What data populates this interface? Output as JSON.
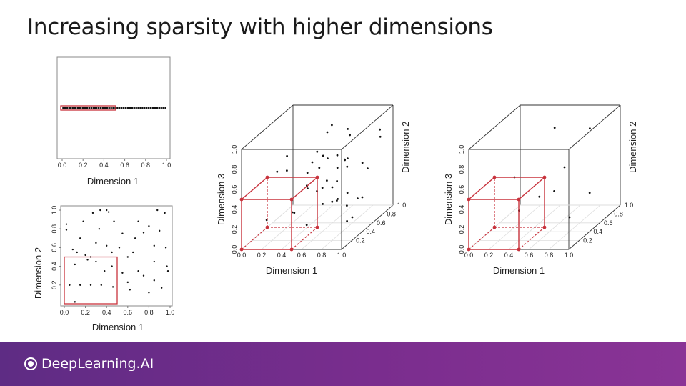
{
  "title": "Increasing sparsity with higher dimensions",
  "brand": {
    "name": "DeepLearning.AI",
    "icon": "deeplearning-logo-icon"
  },
  "colors": {
    "points": "#111111",
    "highlight": "#c8323c",
    "axis": "#555555",
    "grid": "#dddddd",
    "footer": "#6e2c8a"
  },
  "chart_data": [
    {
      "id": "one-d",
      "type": "scatter",
      "xlabel": "Dimension 1",
      "xlim": [
        0,
        1
      ],
      "xticks": [
        "0.0",
        "0.2",
        "0.4",
        "0.6",
        "0.8",
        "1.0"
      ],
      "highlight": {
        "x": [
          0,
          0.5
        ]
      },
      "x": [
        0.01,
        0.02,
        0.035,
        0.05,
        0.07,
        0.08,
        0.1,
        0.115,
        0.13,
        0.15,
        0.165,
        0.18,
        0.2,
        0.22,
        0.24,
        0.26,
        0.28,
        0.3,
        0.315,
        0.33,
        0.35,
        0.37,
        0.39,
        0.41,
        0.43,
        0.45,
        0.47,
        0.49,
        0.51,
        0.53,
        0.55,
        0.57,
        0.59,
        0.61,
        0.63,
        0.65,
        0.67,
        0.69,
        0.71,
        0.73,
        0.75,
        0.77,
        0.79,
        0.81,
        0.83,
        0.85,
        0.87,
        0.89,
        0.91,
        0.93,
        0.95,
        0.97,
        0.99
      ]
    },
    {
      "id": "two-d",
      "type": "scatter",
      "xlabel": "Dimension 1",
      "ylabel": "Dimension 2",
      "xlim": [
        0,
        1
      ],
      "ylim": [
        0,
        1
      ],
      "xticks": [
        "0.0",
        "0.2",
        "0.4",
        "0.6",
        "0.8",
        "1.0"
      ],
      "yticks": [
        "0.2",
        "0.4",
        "0.6",
        "0.8",
        "1.0"
      ],
      "highlight": {
        "x": [
          0,
          0.5
        ],
        "y": [
          0,
          0.5
        ]
      },
      "points": [
        [
          0.02,
          0.79
        ],
        [
          0.08,
          0.58
        ],
        [
          0.12,
          0.55
        ],
        [
          0.1,
          0.42
        ],
        [
          0.15,
          0.2
        ],
        [
          0.1,
          0.02
        ],
        [
          0.05,
          0.2
        ],
        [
          0.2,
          0.52
        ],
        [
          0.25,
          0.5
        ],
        [
          0.22,
          0.47
        ],
        [
          0.27,
          0.97
        ],
        [
          0.34,
          1.0
        ],
        [
          0.4,
          1.0
        ],
        [
          0.42,
          0.98
        ],
        [
          0.25,
          0.2
        ],
        [
          0.35,
          0.2
        ],
        [
          0.46,
          0.18
        ],
        [
          0.38,
          0.35
        ],
        [
          0.3,
          0.45
        ],
        [
          0.45,
          0.4
        ],
        [
          0.3,
          0.65
        ],
        [
          0.33,
          0.8
        ],
        [
          0.45,
          0.55
        ],
        [
          0.52,
          0.6
        ],
        [
          0.55,
          0.33
        ],
        [
          0.6,
          0.23
        ],
        [
          0.62,
          0.15
        ],
        [
          0.67,
          0.7
        ],
        [
          0.7,
          0.88
        ],
        [
          0.75,
          0.76
        ],
        [
          0.8,
          0.83
        ],
        [
          0.75,
          0.3
        ],
        [
          0.7,
          0.35
        ],
        [
          0.85,
          0.25
        ],
        [
          0.85,
          0.45
        ],
        [
          0.85,
          0.62
        ],
        [
          0.9,
          0.78
        ],
        [
          0.95,
          0.97
        ],
        [
          0.97,
          0.4
        ],
        [
          0.98,
          0.35
        ],
        [
          0.96,
          0.6
        ],
        [
          0.88,
          1.0
        ],
        [
          0.6,
          0.5
        ],
        [
          0.55,
          0.75
        ],
        [
          0.15,
          0.7
        ],
        [
          0.18,
          0.88
        ],
        [
          0.4,
          0.62
        ],
        [
          0.65,
          0.55
        ],
        [
          0.8,
          0.12
        ],
        [
          0.92,
          0.17
        ],
        [
          0.02,
          0.85
        ],
        [
          0.47,
          0.88
        ]
      ]
    },
    {
      "id": "three-d-many",
      "type": "scatter",
      "xlabel": "Dimension 1",
      "ylabel": "Dimension 2",
      "zlabel": "Dimension 3",
      "xlim": [
        0,
        1
      ],
      "ylim": [
        0,
        1
      ],
      "zlim": [
        0,
        1
      ],
      "xticks": [
        "0.0",
        "0.2",
        "0.4",
        "0.6",
        "0.8",
        "1.0"
      ],
      "yticks": [
        "0.0",
        "0.2",
        "0.4",
        "0.6",
        "0.8",
        "1.0"
      ],
      "zticks": [
        "0.0",
        "0.2",
        "0.4",
        "0.6",
        "0.8",
        "1.0"
      ],
      "highlight": {
        "x": [
          0,
          0.5
        ],
        "y": [
          0,
          0.5
        ],
        "z": [
          0,
          0.5
        ]
      },
      "points": [
        [
          0.6,
          0.5,
          0.95
        ],
        [
          0.62,
          0.55,
          1.0
        ],
        [
          0.8,
          0.55,
          0.9
        ],
        [
          0.55,
          0.4,
          0.8
        ],
        [
          0.6,
          0.42,
          0.75
        ],
        [
          0.7,
          0.5,
          0.72
        ],
        [
          0.75,
          0.55,
          0.65
        ],
        [
          0.8,
          0.45,
          0.7
        ],
        [
          0.85,
          0.4,
          0.65
        ],
        [
          0.65,
          0.6,
          0.55
        ],
        [
          0.7,
          0.7,
          0.6
        ],
        [
          0.9,
          0.7,
          0.5
        ],
        [
          0.95,
          0.85,
          0.75
        ],
        [
          0.92,
          0.9,
          0.8
        ],
        [
          0.5,
          0.3,
          0.5
        ],
        [
          0.55,
          0.2,
          0.55
        ],
        [
          0.6,
          0.3,
          0.45
        ],
        [
          0.65,
          0.5,
          0.4
        ],
        [
          0.7,
          0.4,
          0.3
        ],
        [
          0.75,
          0.6,
          0.3
        ],
        [
          0.8,
          0.7,
          0.2
        ],
        [
          0.85,
          0.5,
          0.1
        ],
        [
          0.9,
          0.3,
          0.15
        ],
        [
          0.95,
          0.5,
          0.3
        ],
        [
          0.95,
          0.2,
          0.35
        ],
        [
          0.5,
          0.6,
          0.35
        ],
        [
          0.45,
          0.5,
          0.65
        ],
        [
          0.35,
          0.2,
          0.7
        ],
        [
          0.3,
          0.3,
          0.8
        ],
        [
          0.2,
          0.1,
          0.25
        ],
        [
          0.25,
          0.5,
          0.15
        ],
        [
          0.4,
          0.8,
          0.1
        ],
        [
          0.55,
          0.8,
          0.15
        ],
        [
          0.5,
          0.7,
          0.6
        ],
        [
          0.65,
          0.8,
          0.85
        ],
        [
          0.75,
          0.2,
          0.6
        ],
        [
          0.85,
          0.2,
          0.4
        ],
        [
          0.35,
          0.6,
          0.5
        ],
        [
          0.45,
          0.15,
          0.3
        ],
        [
          0.6,
          0.1,
          0.2
        ],
        [
          0.7,
          0.15,
          0.75
        ],
        [
          0.8,
          0.3,
          0.55
        ],
        [
          0.3,
          0.7,
          0.3
        ],
        [
          0.15,
          0.4,
          0.6
        ],
        [
          0.9,
          0.6,
          0.6
        ]
      ]
    },
    {
      "id": "three-d-few",
      "type": "scatter",
      "xlabel": "Dimension 1",
      "ylabel": "Dimension 2",
      "zlabel": "Dimension 3",
      "xlim": [
        0,
        1
      ],
      "ylim": [
        0,
        1
      ],
      "zlim": [
        0,
        1
      ],
      "xticks": [
        "0.0",
        "0.2",
        "0.4",
        "0.6",
        "0.8",
        "1.0"
      ],
      "yticks": [
        "0.0",
        "0.2",
        "0.4",
        "0.6",
        "0.8",
        "1.0"
      ],
      "zticks": [
        "0.0",
        "0.2",
        "0.4",
        "0.6",
        "0.8",
        "1.0"
      ],
      "highlight": {
        "x": [
          0,
          0.5
        ],
        "y": [
          0,
          0.5
        ],
        "z": [
          0,
          0.5
        ]
      },
      "points": [
        [
          0.55,
          0.6,
          0.95
        ],
        [
          0.85,
          0.7,
          0.9
        ],
        [
          0.7,
          0.5,
          0.6
        ],
        [
          0.7,
          0.3,
          0.45
        ],
        [
          0.2,
          0.5,
          0.5
        ],
        [
          0.5,
          0.4,
          0.35
        ],
        [
          0.4,
          0.2,
          0.3
        ],
        [
          0.9,
          0.6,
          0.3
        ],
        [
          0.75,
          0.5,
          0.1
        ]
      ]
    }
  ]
}
